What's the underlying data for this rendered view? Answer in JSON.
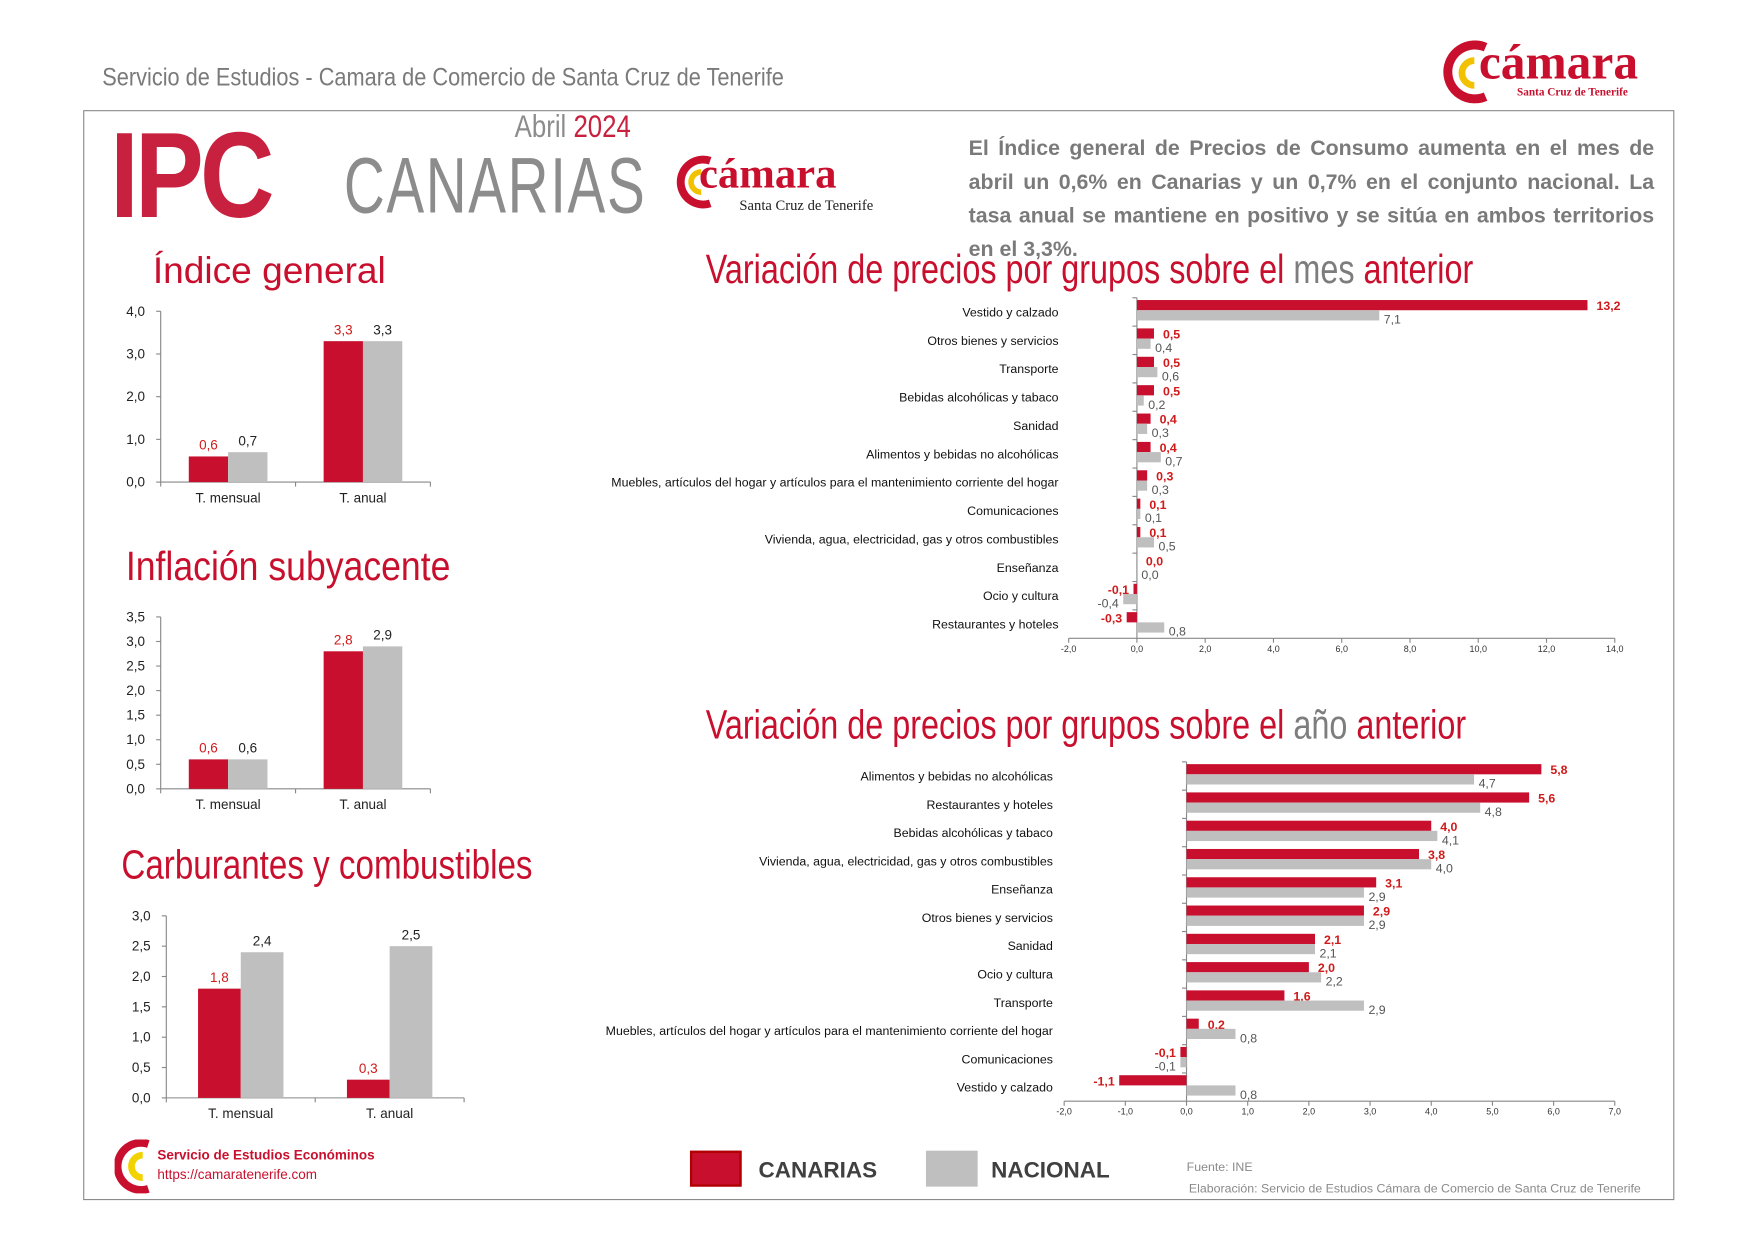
{
  "header": {
    "title": "Servicio de Estudios - Camara de Comercio de Santa Cruz de Tenerife",
    "logo_word": "cámara",
    "logo_sub": "Santa Cruz de Tenerife"
  },
  "banner": {
    "ipc": "IPC",
    "region": "CANARIAS",
    "month": "Abril",
    "year": "2024",
    "logo_word": "cámara",
    "logo_sub": "Santa Cruz de Tenerife"
  },
  "summary": "El Índice general de Precios de Consumo aumenta en el mes de abril un 0,6% en Canarias y un 0,7% en el conjunto nacional. La tasa anual se mantiene en positivo y se sitúa en ambos territorios en el 3,3%.",
  "titles": {
    "indice": "Índice general",
    "subyacente": "Inflación subyacente",
    "carburantes": "Carburantes y combustibles",
    "mes_a": "Variación de precios por grupos sobre el ",
    "mes_b": "mes",
    "mes_c": " anterior",
    "ano_a": "Variación de precios por grupos sobre el ",
    "ano_b": "año",
    "ano_c": " anterior"
  },
  "colors": {
    "canarias": "#c8102e",
    "nacional": "#bfbfbf",
    "label_canarias": "#d11a1a"
  },
  "legend": {
    "canarias": "CANARIAS",
    "nacional": "NACIONAL"
  },
  "footer": {
    "service": "Servicio de Estudios Económinos",
    "url": "https://camaratenerife.com",
    "source": "Fuente: INE",
    "elaboration": "Elaboración: Servicio de Estudios Cámara de Comercio de Santa Cruz de Tenerife"
  },
  "chart_data": [
    {
      "id": "indice",
      "type": "bar",
      "categories": [
        "T. mensual",
        "T. anual"
      ],
      "series": [
        {
          "name": "CANARIAS",
          "values": [
            0.6,
            3.3
          ]
        },
        {
          "name": "NACIONAL",
          "values": [
            0.7,
            3.3
          ]
        }
      ],
      "ylim": [
        0,
        4
      ],
      "yticks": [
        "0,0",
        "1,0",
        "2,0",
        "3,0",
        "4,0"
      ],
      "ytick_values": [
        0,
        1,
        2,
        3,
        4
      ],
      "labels": [
        [
          "0,6",
          "3,3"
        ],
        [
          "0,7",
          "3,3"
        ]
      ]
    },
    {
      "id": "subyacente",
      "type": "bar",
      "categories": [
        "T. mensual",
        "T. anual"
      ],
      "series": [
        {
          "name": "CANARIAS",
          "values": [
            0.6,
            2.8
          ]
        },
        {
          "name": "NACIONAL",
          "values": [
            0.6,
            2.9
          ]
        }
      ],
      "ylim": [
        0,
        3.5
      ],
      "yticks": [
        "0,0",
        "0,5",
        "1,0",
        "1,5",
        "2,0",
        "2,5",
        "3,0",
        "3,5"
      ],
      "ytick_values": [
        0,
        0.5,
        1,
        1.5,
        2,
        2.5,
        3,
        3.5
      ],
      "labels": [
        [
          "0,6",
          "2,8"
        ],
        [
          "0,6",
          "2,9"
        ]
      ]
    },
    {
      "id": "carburantes",
      "type": "bar",
      "categories": [
        "T. mensual",
        "T. anual"
      ],
      "series": [
        {
          "name": "CANARIAS",
          "values": [
            1.8,
            0.3
          ]
        },
        {
          "name": "NACIONAL",
          "values": [
            2.4,
            2.5
          ]
        }
      ],
      "ylim": [
        0,
        3
      ],
      "yticks": [
        "0,0",
        "0,5",
        "1,0",
        "1,5",
        "2,0",
        "2,5",
        "3,0"
      ],
      "ytick_values": [
        0,
        0.5,
        1,
        1.5,
        2,
        2.5,
        3
      ],
      "labels": [
        [
          "1,8",
          "0,3"
        ],
        [
          "2,4",
          "2,5"
        ]
      ]
    },
    {
      "id": "mes",
      "type": "bar",
      "orientation": "horizontal",
      "categories": [
        "Vestido y calzado",
        "Otros bienes y servicios",
        "Transporte",
        "Bebidas alcohólicas y tabaco",
        "Sanidad",
        "Alimentos y bebidas no alcohólicas",
        "Muebles, artículos del hogar y artículos para el mantenimiento corriente del hogar",
        "Comunicaciones",
        "Vivienda, agua, electricidad, gas y otros combustibles",
        "Enseñanza",
        "Ocio y cultura",
        "Restaurantes y hoteles"
      ],
      "series": [
        {
          "name": "CANARIAS",
          "values": [
            13.2,
            0.5,
            0.5,
            0.5,
            0.4,
            0.4,
            0.3,
            0.1,
            0.1,
            0.0,
            -0.1,
            -0.3
          ]
        },
        {
          "name": "NACIONAL",
          "values": [
            7.1,
            0.4,
            0.6,
            0.2,
            0.3,
            0.7,
            0.3,
            0.1,
            0.5,
            0.0,
            -0.4,
            0.8
          ]
        }
      ],
      "labels": [
        [
          "13,2",
          "0,5",
          "0,5",
          "0,5",
          "0,4",
          "0,4",
          "0,3",
          "0,1",
          "0,1",
          "0,0",
          "-0,1",
          "-0,3"
        ],
        [
          "7,1",
          "0,4",
          "0,6",
          "0,2",
          "0,3",
          "0,7",
          "0,3",
          "0,1",
          "0,5",
          "0,0",
          "-0,4",
          "0,8"
        ]
      ],
      "xlim": [
        -2,
        14
      ],
      "xticks": [
        "-2,0",
        "0,0",
        "2,0",
        "4,0",
        "6,0",
        "8,0",
        "10,0",
        "12,0",
        "14,0"
      ],
      "xtick_values": [
        -2,
        0,
        2,
        4,
        6,
        8,
        10,
        12,
        14
      ]
    },
    {
      "id": "ano",
      "type": "bar",
      "orientation": "horizontal",
      "categories": [
        "Alimentos y bebidas no alcohólicas",
        "Restaurantes y hoteles",
        "Bebidas alcohólicas y tabaco",
        "Vivienda, agua, electricidad, gas y otros combustibles",
        "Enseñanza",
        "Otros bienes y servicios",
        "Sanidad",
        "Ocio y cultura",
        "Transporte",
        "Muebles, artículos del hogar y artículos para el mantenimiento corriente del hogar",
        "Comunicaciones",
        "Vestido y calzado"
      ],
      "series": [
        {
          "name": "CANARIAS",
          "values": [
            5.8,
            5.6,
            4.0,
            3.8,
            3.1,
            2.9,
            2.1,
            2.0,
            1.6,
            0.2,
            -0.1,
            -1.1
          ]
        },
        {
          "name": "NACIONAL",
          "values": [
            4.7,
            4.8,
            4.1,
            4.0,
            2.9,
            2.9,
            2.1,
            2.2,
            2.9,
            0.8,
            -0.1,
            0.8
          ]
        }
      ],
      "labels": [
        [
          "5,8",
          "5,6",
          "4,0",
          "3,8",
          "3,1",
          "2,9",
          "2,1",
          "2,0",
          "1,6",
          "0,2",
          "-0,1",
          "-1,1"
        ],
        [
          "4,7",
          "4,8",
          "4,1",
          "4,0",
          "2,9",
          "2,9",
          "2,1",
          "2,2",
          "2,9",
          "0,8",
          "-0,1",
          "0,8"
        ]
      ],
      "xlim": [
        -2,
        7
      ],
      "xticks": [
        "-2,0",
        "-1,0",
        "0,0",
        "1,0",
        "2,0",
        "3,0",
        "4,0",
        "5,0",
        "6,0",
        "7,0"
      ],
      "xtick_values": [
        -2,
        -1,
        0,
        1,
        2,
        3,
        4,
        5,
        6,
        7
      ]
    }
  ]
}
